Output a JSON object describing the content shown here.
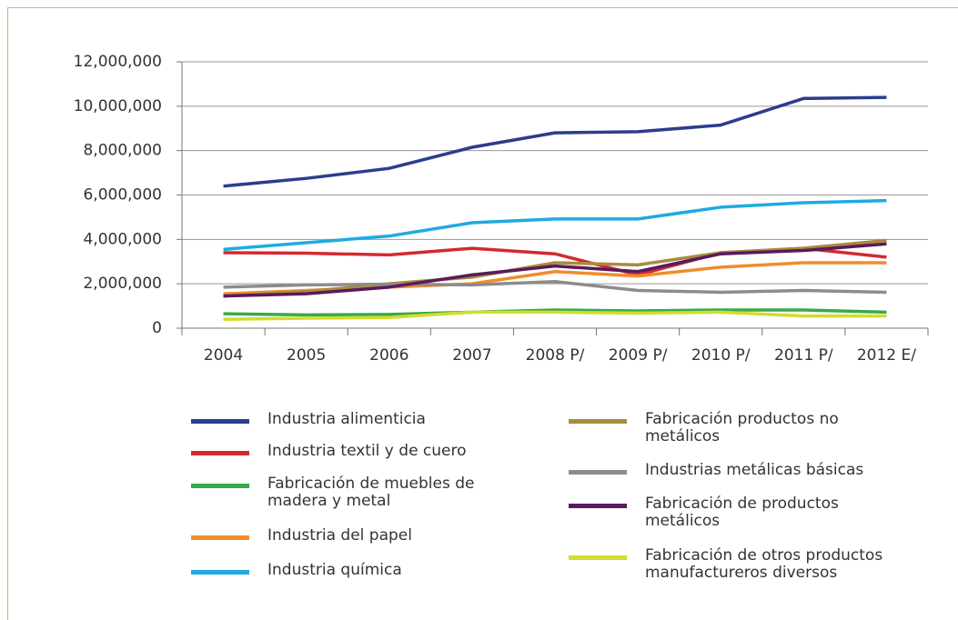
{
  "chart_data": {
    "type": "line",
    "categories": [
      "2004",
      "2005",
      "2006",
      "2007",
      "2008 P/",
      "2009 P/",
      "2010 P/",
      "2011 P/",
      "2012 E/"
    ],
    "ylim": [
      0,
      12000000
    ],
    "yticks": [
      0,
      {
        "value": 2000000,
        "label": "2,000,000"
      },
      {
        "value": 4000000,
        "label": "4,000,000"
      },
      {
        "value": 6000000,
        "label": "6,000,000"
      },
      {
        "value": 8000000,
        "label": "8,000,000"
      },
      {
        "value": 10000000,
        "label": "10,000,000"
      },
      {
        "value": 12000000,
        "label": "12,000,000"
      }
    ],
    "grid": true,
    "series": [
      {
        "name": "Industria alimenticia",
        "color": "#2b3d8c",
        "values": [
          6400000,
          6750000,
          7200000,
          8150000,
          8800000,
          8850000,
          9150000,
          10350000,
          10400000
        ]
      },
      {
        "name": "Industria textil y de cuero",
        "color": "#d42a2e",
        "values": [
          3400000,
          3380000,
          3300000,
          3600000,
          3350000,
          2400000,
          3400000,
          3600000,
          3200000
        ]
      },
      {
        "name": "Fabricación de muebles de madera y metal",
        "color": "#3aa948",
        "values": [
          650000,
          600000,
          620000,
          720000,
          820000,
          780000,
          820000,
          820000,
          720000
        ]
      },
      {
        "name": "Industria del papel",
        "color": "#f28c2a",
        "values": [
          1550000,
          1700000,
          1850000,
          2000000,
          2550000,
          2350000,
          2750000,
          2950000,
          2950000
        ]
      },
      {
        "name": "Industria química",
        "color": "#1eaae2",
        "values": [
          3550000,
          3850000,
          4150000,
          4750000,
          4920000,
          4920000,
          5450000,
          5650000,
          5750000
        ]
      },
      {
        "name": "Fabricación productos no metálicos",
        "color": "#a98b3e",
        "values": [
          1450000,
          1650000,
          2000000,
          2300000,
          2950000,
          2850000,
          3400000,
          3600000,
          3950000
        ]
      },
      {
        "name": "Industrias metálicas básicas",
        "color": "#8c8c8c",
        "values": [
          1850000,
          1950000,
          1980000,
          1950000,
          2100000,
          1700000,
          1620000,
          1700000,
          1620000
        ]
      },
      {
        "name": "Fabricación de productos metálicos",
        "color": "#5a1a5c",
        "values": [
          1450000,
          1550000,
          1850000,
          2400000,
          2800000,
          2550000,
          3350000,
          3500000,
          3800000
        ]
      },
      {
        "name": "Fabricación de otros productos manufactureros diversos",
        "color": "#d3dc2e",
        "values": [
          400000,
          450000,
          480000,
          720000,
          720000,
          680000,
          720000,
          550000,
          550000
        ]
      }
    ]
  }
}
